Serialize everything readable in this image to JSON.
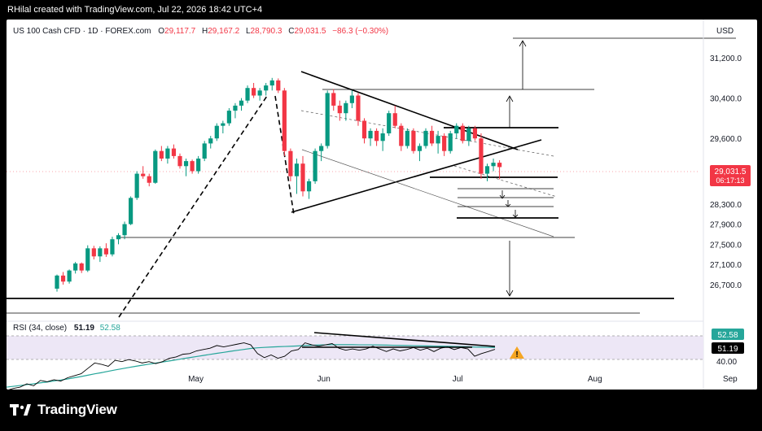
{
  "header": {
    "credit": "RHilal created with TradingView.com, Jul 22, 2026 18:42 UTC+4"
  },
  "legend": {
    "symbol": "US 100 Cash CFD · 1D · FOREX.com",
    "o_label": "O",
    "o_value": "29,117.7",
    "h_label": "H",
    "h_value": "29,167.2",
    "l_label": "L",
    "l_value": "28,790.3",
    "c_label": "C",
    "c_value": "29,031.5",
    "change": "−86.3 (−0.30%)"
  },
  "currency": "USD",
  "price_badge": {
    "price": "29,031.5",
    "countdown": "06:17:13"
  },
  "rsi": {
    "label": "RSI (34, close)",
    "value": "51.19",
    "ma_value": "52.58",
    "badge_ma": "52.58",
    "badge_rsi": "51.19"
  },
  "footer": {
    "brand": "TradingView",
    "logo_icon": "tradingview-logo-icon"
  },
  "colors": {
    "up": "#089981",
    "down": "#f23645",
    "rsi_line": "#000000",
    "rsi_ma": "#26a69a",
    "rsi_band": "#ede7f6",
    "warning": "#f5a623"
  },
  "chart_data": {
    "type": "candlestick",
    "price_axis_ticks": [
      31200,
      30400,
      29600,
      28300,
      27900,
      27500,
      27100,
      26700
    ],
    "price_axis_labels": [
      "31,200.0",
      "30,400.0",
      "29,600.0",
      "28,300.0",
      "27,900.0",
      "27,500.0",
      "27,100.0",
      "26,700.0"
    ],
    "date_axis": [
      {
        "label": "May",
        "index": 22
      },
      {
        "label": "Jun",
        "index": 43
      },
      {
        "label": "Jul",
        "index": 65
      },
      {
        "label": "Aug",
        "index": 87
      },
      {
        "label": "Sep",
        "index": 109
      }
    ],
    "candles": [
      [
        26620,
        26900,
        26560,
        26880
      ],
      [
        26880,
        26950,
        26700,
        26760
      ],
      [
        26760,
        27000,
        26720,
        26980
      ],
      [
        26980,
        27150,
        26920,
        27120
      ],
      [
        27120,
        27140,
        26930,
        26980
      ],
      [
        26980,
        27480,
        26950,
        27420
      ],
      [
        27420,
        27470,
        27200,
        27260
      ],
      [
        27260,
        27460,
        27150,
        27420
      ],
      [
        27420,
        27520,
        27250,
        27300
      ],
      [
        27300,
        27650,
        27260,
        27600
      ],
      [
        27600,
        27720,
        27500,
        27680
      ],
      [
        27680,
        27950,
        27600,
        27900
      ],
      [
        27900,
        28450,
        27880,
        28420
      ],
      [
        28420,
        28950,
        28380,
        28900
      ],
      [
        28900,
        29050,
        28800,
        28850
      ],
      [
        28850,
        28900,
        28650,
        28720
      ],
      [
        28720,
        29380,
        28700,
        29350
      ],
      [
        29350,
        29450,
        29150,
        29200
      ],
      [
        29200,
        29450,
        29100,
        29400
      ],
      [
        29400,
        29480,
        29200,
        29250
      ],
      [
        29250,
        29300,
        29000,
        29050
      ],
      [
        29050,
        29200,
        28850,
        29150
      ],
      [
        29150,
        29180,
        28900,
        28950
      ],
      [
        28950,
        29250,
        28900,
        29200
      ],
      [
        29200,
        29550,
        29150,
        29500
      ],
      [
        29500,
        29650,
        29400,
        29600
      ],
      [
        29600,
        29900,
        29550,
        29850
      ],
      [
        29850,
        29950,
        29700,
        29900
      ],
      [
        29900,
        30200,
        29850,
        30150
      ],
      [
        30150,
        30300,
        30000,
        30250
      ],
      [
        30250,
        30400,
        30150,
        30350
      ],
      [
        30350,
        30650,
        30300,
        30600
      ],
      [
        30600,
        30700,
        30400,
        30450
      ],
      [
        30450,
        30600,
        30350,
        30550
      ],
      [
        30550,
        30700,
        30450,
        30650
      ],
      [
        30650,
        30800,
        30550,
        30750
      ],
      [
        30750,
        30790,
        30500,
        30550
      ],
      [
        30550,
        30600,
        29250,
        29350
      ],
      [
        29350,
        29400,
        28750,
        28850
      ],
      [
        28850,
        29200,
        28500,
        29100
      ],
      [
        29100,
        29250,
        28450,
        28550
      ],
      [
        28550,
        28800,
        28400,
        28750
      ],
      [
        28750,
        29400,
        28700,
        29350
      ],
      [
        29350,
        29500,
        29150,
        29450
      ],
      [
        29450,
        30550,
        29400,
        30500
      ],
      [
        30500,
        30580,
        30150,
        30250
      ],
      [
        30250,
        30350,
        29950,
        30100
      ],
      [
        30100,
        30350,
        29950,
        30300
      ],
      [
        30300,
        30550,
        30200,
        30450
      ],
      [
        30450,
        30500,
        29850,
        29950
      ],
      [
        29950,
        30000,
        29500,
        29600
      ],
      [
        29600,
        29800,
        29450,
        29750
      ],
      [
        29750,
        29800,
        29450,
        29550
      ],
      [
        29550,
        29800,
        29350,
        29700
      ],
      [
        29700,
        30150,
        29650,
        30100
      ],
      [
        30100,
        30250,
        29800,
        29850
      ],
      [
        29850,
        29900,
        29350,
        29450
      ],
      [
        29450,
        29800,
        29400,
        29750
      ],
      [
        29750,
        29800,
        29300,
        29350
      ],
      [
        29350,
        29500,
        29150,
        29450
      ],
      [
        29450,
        29800,
        29400,
        29750
      ],
      [
        29750,
        29850,
        29450,
        29500
      ],
      [
        29500,
        29750,
        29300,
        29650
      ],
      [
        29650,
        29700,
        29250,
        29350
      ],
      [
        29350,
        29750,
        29300,
        29700
      ],
      [
        29700,
        29900,
        29600,
        29850
      ],
      [
        29850,
        29900,
        29500,
        29550
      ],
      [
        29550,
        29850,
        29450,
        29800
      ],
      [
        29800,
        29850,
        29550,
        29600
      ],
      [
        29600,
        29700,
        28800,
        28900
      ],
      [
        28900,
        29100,
        28750,
        29050
      ],
      [
        29050,
        29200,
        28950,
        29117.7
      ],
      [
        29117.7,
        29167.2,
        28790.3,
        29031.5
      ]
    ],
    "rsi_values": [
      20.5,
      22,
      23,
      25.5,
      24,
      28,
      27,
      28.5,
      27.5,
      30,
      31.5,
      33,
      37,
      41,
      40,
      38.5,
      43,
      42,
      43.5,
      42.5,
      41,
      42,
      40.5,
      42,
      44.5,
      45.5,
      47.5,
      48,
      50,
      51,
      52,
      54,
      53,
      54,
      55,
      56,
      54.5,
      48,
      45,
      47,
      44.5,
      46,
      50,
      51,
      56,
      54.5,
      53.5,
      54.5,
      55.5,
      52,
      50.5,
      51.5,
      50.5,
      51.5,
      53.5,
      51.5,
      49.5,
      51.5,
      50,
      51,
      52.5,
      50.5,
      52,
      49.5,
      52,
      53,
      51,
      52.5,
      51.5,
      46,
      48,
      49.5,
      51.19
    ],
    "rsi_ma_values": [
      23,
      23.6,
      24.2,
      24.9,
      25.5,
      26.2,
      26.8,
      27.6,
      28.3,
      29.1,
      30,
      30.9,
      31.9,
      32.9,
      33.8,
      34.8,
      35.8,
      36.7,
      37.6,
      38.5,
      39.3,
      40.1,
      40.9,
      41.7,
      42.5,
      43.3,
      44.2,
      45,
      45.8,
      46.6,
      47.4,
      48.2,
      48.9,
      49.7,
      50.4,
      51.1,
      51.8,
      52.3,
      52.6,
      52.9,
      53.1,
      53.3,
      53.5,
      53.7,
      54,
      54.2,
      54.4,
      54.5,
      54.6,
      54.6,
      54.6,
      54.6,
      54.5,
      54.5,
      54.5,
      54.4,
      54.3,
      54.2,
      54.1,
      54,
      53.9,
      53.8,
      53.7,
      53.6,
      53.5,
      53.4,
      53.3,
      53.2,
      53.1,
      52.9,
      52.8,
      52.7,
      52.58
    ],
    "rsi_range": [
      40,
      60
    ],
    "rsi_band_levels": [
      43,
      57
    ],
    "rsi_tick_label": "40.00"
  }
}
